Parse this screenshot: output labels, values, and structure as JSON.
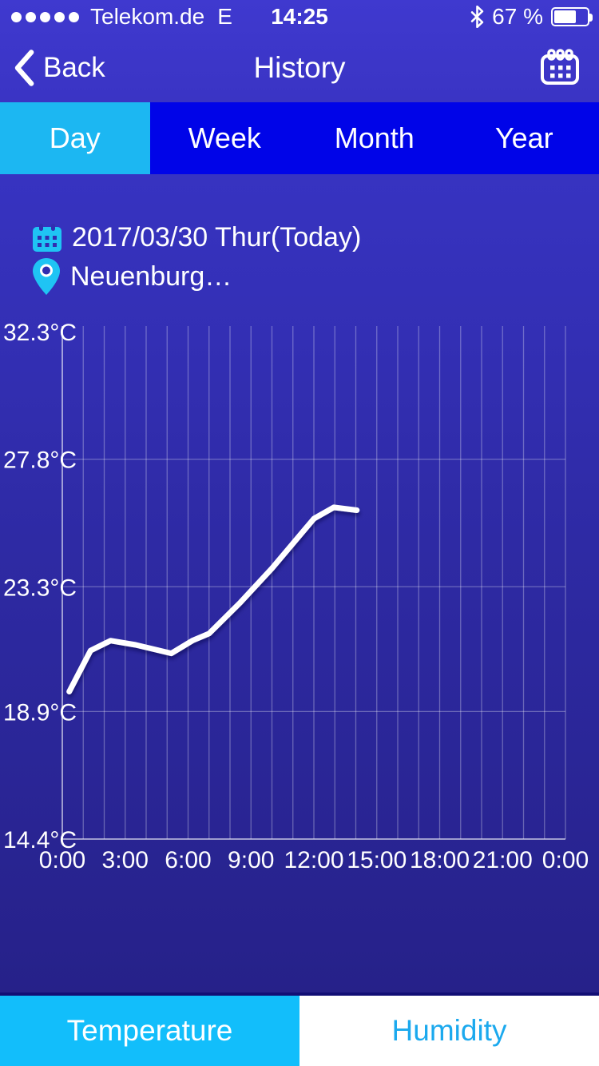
{
  "status_bar": {
    "signal_dots": 5,
    "carrier": "Telekom.de",
    "network_type": "E",
    "time": "14:25",
    "battery_label": "67 %",
    "battery_percent": 67
  },
  "nav_bar": {
    "back_label": "Back",
    "title": "History"
  },
  "period_tabs": [
    {
      "label": "Day",
      "active": true
    },
    {
      "label": "Week",
      "active": false
    },
    {
      "label": "Month",
      "active": false
    },
    {
      "label": "Year",
      "active": false
    }
  ],
  "info": {
    "date": "2017/03/30 Thur(Today)",
    "location": "Neuenburg…"
  },
  "chart_data": {
    "type": "line",
    "grid": true,
    "x_unit": "hour-of-day",
    "x_range_hours": [
      0,
      24
    ],
    "x_gridline_every_hours": 1,
    "x_tick_hours": [
      0,
      3,
      6,
      9,
      12,
      15,
      18,
      21,
      24
    ],
    "x_ticks": [
      "0:00",
      "3:00",
      "6:00",
      "9:00",
      "12:00",
      "15:00",
      "18:00",
      "21:00",
      "0:00"
    ],
    "y_ticks": [
      "32.3°C",
      "27.8°C",
      "23.3°C",
      "18.9°C",
      "14.4°C"
    ],
    "y_tick_values": [
      32.3,
      27.8,
      23.3,
      18.9,
      14.4
    ],
    "ylim": [
      14.4,
      32.3
    ],
    "series": [
      {
        "name": "Temperature",
        "color": "#FFFFFF",
        "points": [
          {
            "hour": 0.33,
            "temp": 19.6
          },
          {
            "hour": 1.35,
            "temp": 21.05
          },
          {
            "hour": 2.3,
            "temp": 21.4
          },
          {
            "hour": 3.5,
            "temp": 21.25
          },
          {
            "hour": 5.2,
            "temp": 20.95
          },
          {
            "hour": 6.2,
            "temp": 21.4
          },
          {
            "hour": 7.0,
            "temp": 21.65
          },
          {
            "hour": 8.5,
            "temp": 22.75
          },
          {
            "hour": 10.0,
            "temp": 23.95
          },
          {
            "hour": 12.0,
            "temp": 25.7
          },
          {
            "hour": 12.95,
            "temp": 26.1
          },
          {
            "hour": 14.05,
            "temp": 26.0
          }
        ]
      }
    ]
  },
  "bottom_tabs": [
    {
      "label": "Temperature",
      "active": true
    },
    {
      "label": "Humidity",
      "active": false
    }
  ],
  "colors": {
    "nav_bg_top": "#3F39CF",
    "nav_bg": "#3A34C4",
    "tab_bar_bg": "#0004E8",
    "active_tab_cyan": "#1CB7F2",
    "content_top": "#3733C1",
    "content_mid": "#2E2AA4",
    "content_bottom": "#262189",
    "bottom_tab_cyan": "#12BEFB",
    "humidity_text": "#1BA9EE",
    "icon_cyan": "#1FC4F4",
    "divider": "#120F75",
    "gridline": "rgba(255,255,255,0.30)",
    "axis_line": "rgba(255,255,255,0.55)",
    "line_color": "#FFFFFF"
  }
}
